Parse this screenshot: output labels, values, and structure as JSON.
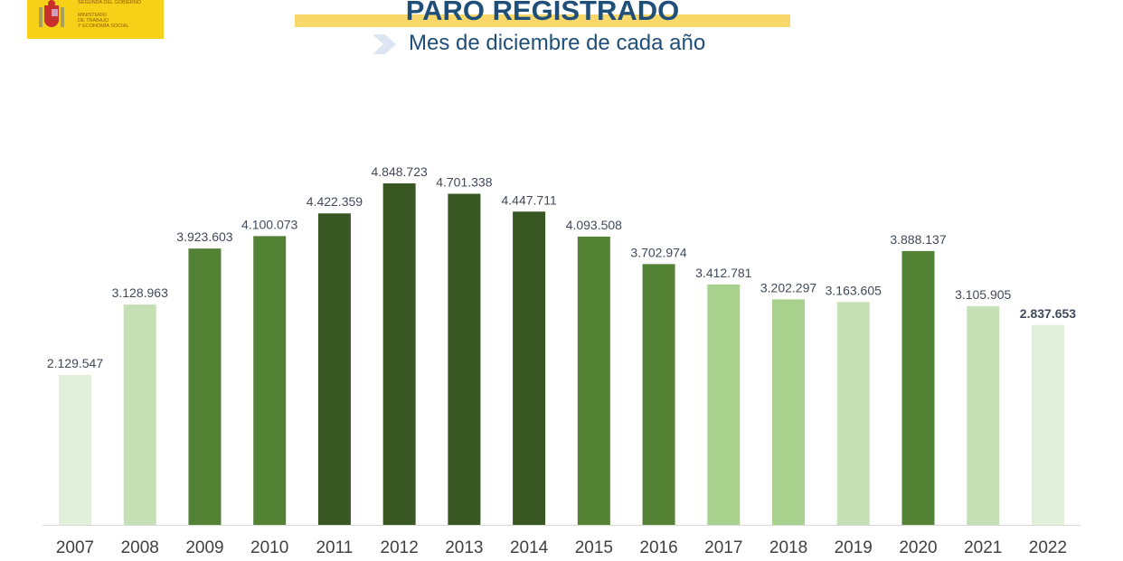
{
  "logo": {
    "line1": "SEGUNDA DEL GOBIERNO",
    "line2": "MINISTERIO\nDE TRABAJO\nY ECONOMÍA SOCIAL"
  },
  "header": {
    "title": "PARO REGISTRADO",
    "subtitle": "Mes de diciembre de cada año"
  },
  "chart_data": {
    "type": "bar",
    "title": "PARO REGISTRADO",
    "subtitle": "Mes de diciembre de cada año",
    "categories": [
      "2007",
      "2008",
      "2009",
      "2010",
      "2011",
      "2012",
      "2013",
      "2014",
      "2015",
      "2016",
      "2017",
      "2018",
      "2019",
      "2020",
      "2021",
      "2022"
    ],
    "values": [
      2129547,
      3128963,
      3923603,
      4100073,
      4422359,
      4848723,
      4701338,
      4447711,
      4093508,
      3702974,
      3412781,
      3202297,
      3163605,
      3888137,
      3105905,
      2837653
    ],
    "labels": [
      "2.129.547",
      "3.128.963",
      "3.923.603",
      "4.100.073",
      "4.422.359",
      "4.848.723",
      "4.701.338",
      "4.447.711",
      "4.093.508",
      "3.702.974",
      "3.412.781",
      "3.202.297",
      "3.163.605",
      "3.888.137",
      "3.105.905",
      "2.837.653"
    ],
    "colors": [
      "#e2efda",
      "#c5e0b4",
      "#548235",
      "#548235",
      "#385723",
      "#385723",
      "#385723",
      "#385723",
      "#548235",
      "#548235",
      "#a9d18e",
      "#a9d18e",
      "#c5e0b4",
      "#548235",
      "#c5e0b4",
      "#e2efda"
    ],
    "highlight_last_label": true,
    "ylim": [
      0,
      4848723
    ],
    "grid": false,
    "xlabel": "",
    "ylabel": ""
  }
}
